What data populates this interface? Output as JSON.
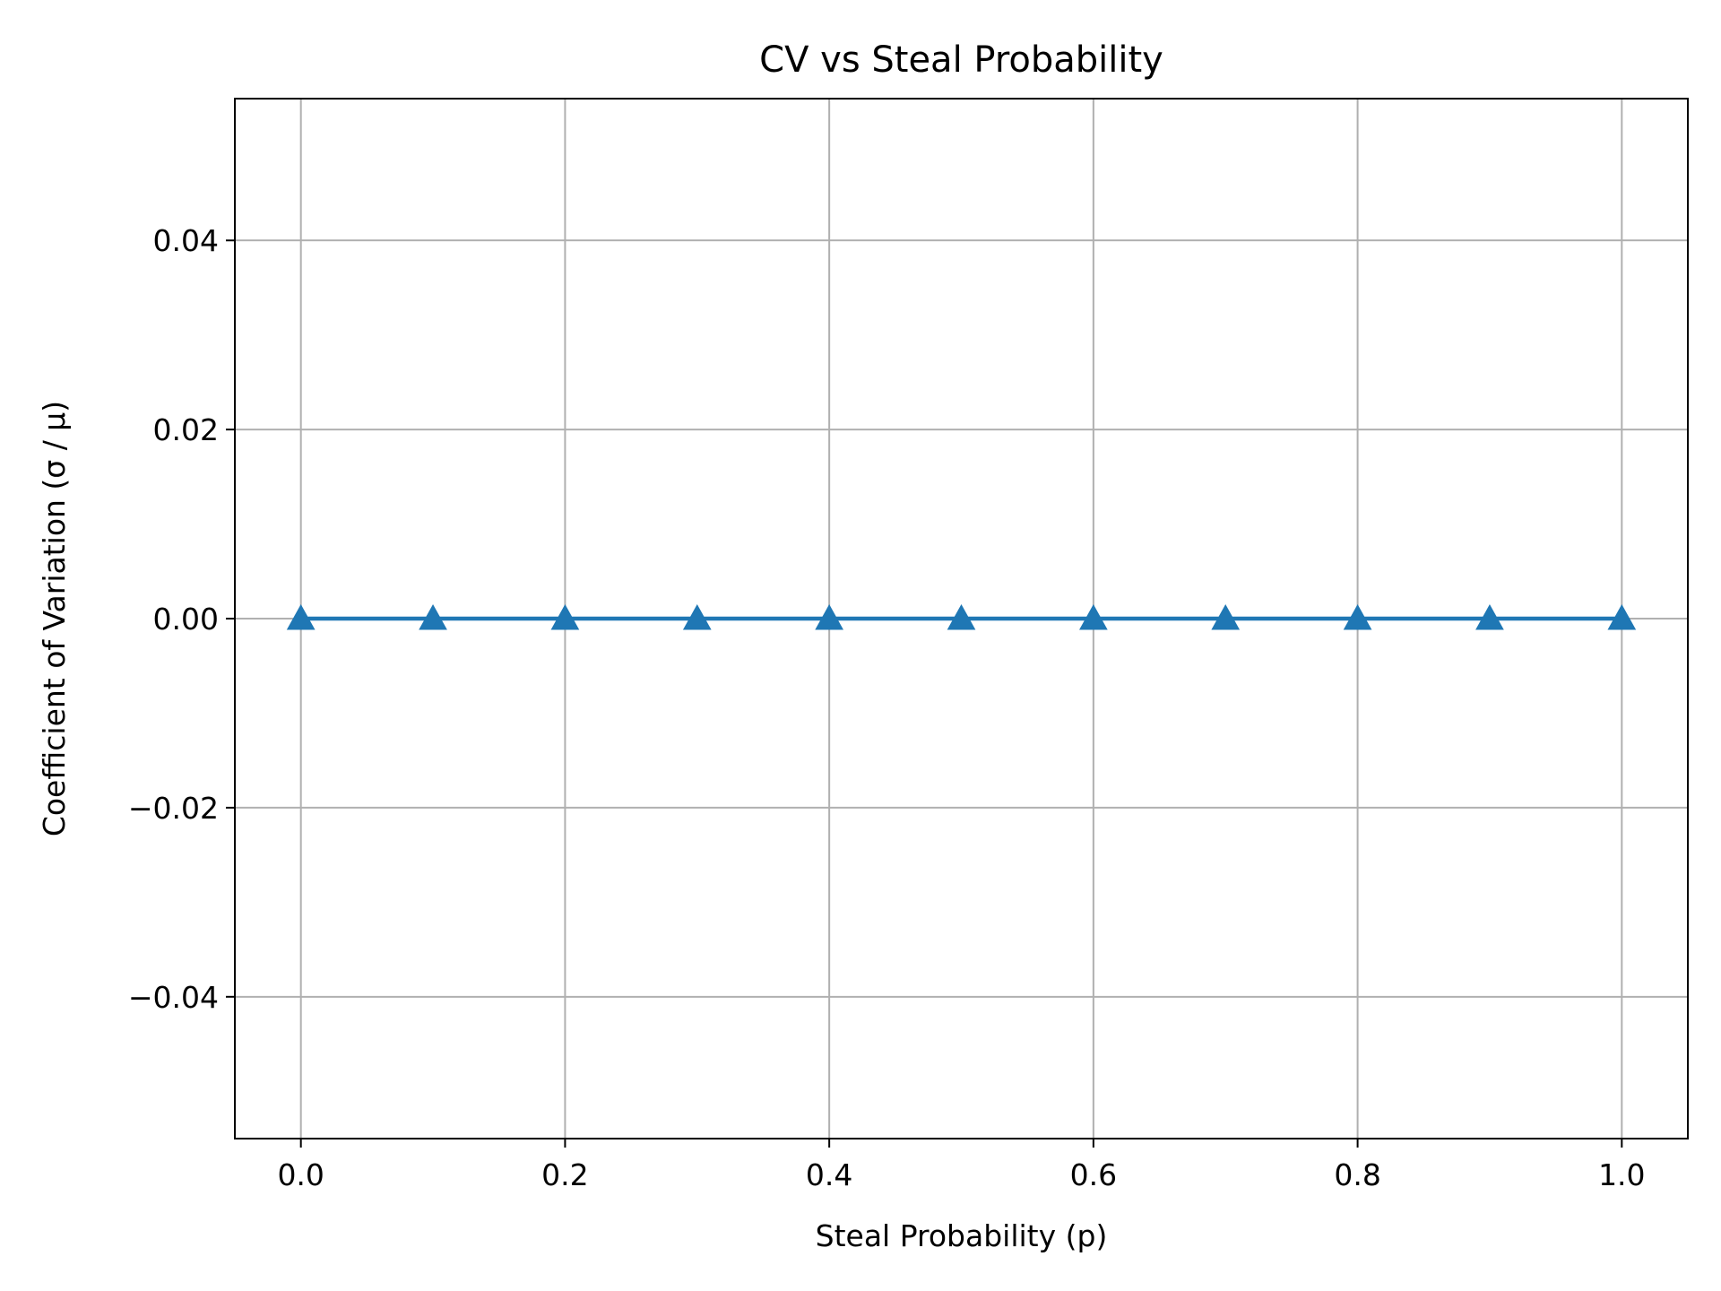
{
  "chart_data": {
    "type": "line",
    "title": "CV vs Steal Probability",
    "xlabel": "Steal Probability (p)",
    "ylabel": "Coefficient of Variation (σ / μ)",
    "xlim": [
      -0.05,
      1.05
    ],
    "ylim": [
      -0.055,
      0.055
    ],
    "grid": true,
    "x_ticks": [
      0.0,
      0.2,
      0.4,
      0.6,
      0.8,
      1.0
    ],
    "x_tick_labels": [
      "0.0",
      "0.2",
      "0.4",
      "0.6",
      "0.8",
      "1.0"
    ],
    "y_ticks": [
      -0.04,
      -0.02,
      0.0,
      0.02,
      0.04
    ],
    "y_tick_labels": [
      "−0.04",
      "−0.02",
      "0.00",
      "0.02",
      "0.04"
    ],
    "series": [
      {
        "marker": "triangle-up",
        "color": "#1f77b4",
        "x": [
          0.0,
          0.1,
          0.2,
          0.3,
          0.4,
          0.5,
          0.6,
          0.7,
          0.8,
          0.9,
          1.0
        ],
        "y": [
          0.0,
          0.0,
          0.0,
          0.0,
          0.0,
          0.0,
          0.0,
          0.0,
          0.0,
          0.0,
          0.0
        ]
      }
    ]
  }
}
